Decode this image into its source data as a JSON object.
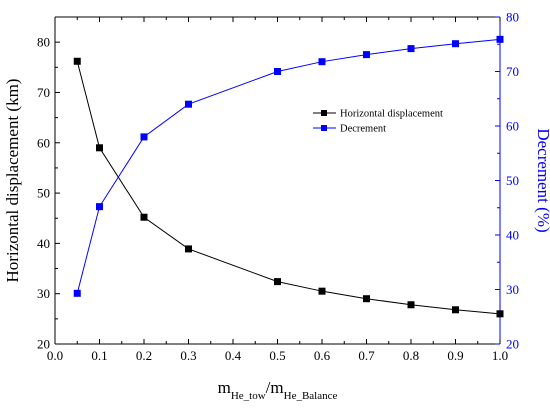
{
  "chart_data": {
    "type": "line",
    "x": [
      0.05,
      0.1,
      0.2,
      0.3,
      0.5,
      0.6,
      0.7,
      0.8,
      0.9,
      1.0
    ],
    "series": [
      {
        "name": "Horizontal displacement",
        "axis": "left",
        "color": "#000000",
        "marker": "square",
        "values": [
          76.2,
          59.0,
          45.2,
          38.9,
          32.4,
          30.5,
          29.0,
          27.8,
          26.8,
          26.0
        ]
      },
      {
        "name": "Decrement",
        "axis": "right",
        "color": "#0000ff",
        "marker": "square",
        "values": [
          29.3,
          45.2,
          58.0,
          64.0,
          70.0,
          71.8,
          73.1,
          74.2,
          75.1,
          75.9
        ]
      }
    ],
    "xlabel": {
      "main": "m",
      "sub1": "He_tow",
      "sep": "/m",
      "sub2": "He_Balance"
    },
    "ylabel": "Horizontal displacement (km)",
    "y2label": "Decrement (%)",
    "xlim": [
      0.0,
      1.0
    ],
    "ylim": [
      20,
      85
    ],
    "y2lim": [
      20,
      80
    ],
    "xticks": [
      "0.0",
      "0.1",
      "0.2",
      "0.3",
      "0.4",
      "0.5",
      "0.6",
      "0.7",
      "0.8",
      "0.9",
      "1.0"
    ],
    "yticks": [
      "20",
      "30",
      "40",
      "50",
      "60",
      "70",
      "80"
    ],
    "y2ticks": [
      "20",
      "30",
      "40",
      "50",
      "60",
      "70",
      "80"
    ],
    "legend_position": "center-right",
    "grid": false,
    "left_axis_color": "#000000",
    "right_axis_color": "#0000ff"
  }
}
